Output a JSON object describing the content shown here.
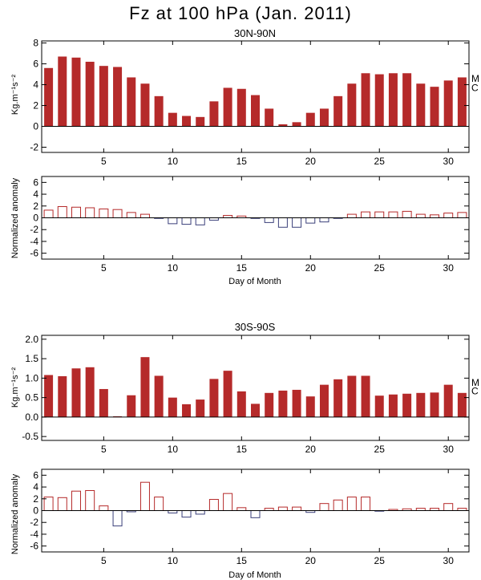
{
  "figure": {
    "title": "Fz at 100 hPa (Jan. 2011)",
    "colors": {
      "positive": "#b52a2a",
      "negative": "#3a3f7a",
      "axis": "#000000"
    }
  },
  "chart_data": [
    {
      "type": "bar",
      "title": "30N-90N",
      "xlabel": "",
      "ylabel": "Kg.m⁻¹s⁻²",
      "x": [
        1,
        2,
        3,
        4,
        5,
        6,
        7,
        8,
        9,
        10,
        11,
        12,
        13,
        14,
        15,
        16,
        17,
        18,
        19,
        20,
        21,
        22,
        23,
        24,
        25,
        26,
        27,
        28,
        29,
        30,
        31
      ],
      "values": [
        5.6,
        6.7,
        6.6,
        6.2,
        5.8,
        5.7,
        4.7,
        4.1,
        2.9,
        1.3,
        1.0,
        0.9,
        2.4,
        3.7,
        3.6,
        3.0,
        1.7,
        0.2,
        0.4,
        1.3,
        1.7,
        2.9,
        4.1,
        5.1,
        5.0,
        5.1,
        5.1,
        4.1,
        3.8,
        4.4,
        4.7
      ],
      "xlim": [
        0.5,
        31.5
      ],
      "ylim": [
        -2.5,
        8.2
      ],
      "xticks": [
        5,
        10,
        15,
        20,
        25,
        30
      ],
      "yticks": [
        -2,
        0,
        2,
        4,
        6,
        8
      ],
      "style": "filled",
      "side_labels": [
        {
          "text": "M",
          "y": 4.6
        },
        {
          "text": "C",
          "y": 3.7
        }
      ]
    },
    {
      "type": "bar",
      "title": "",
      "xlabel": "Day of Month",
      "ylabel": "Normalized anomaly",
      "x": [
        1,
        2,
        3,
        4,
        5,
        6,
        7,
        8,
        9,
        10,
        11,
        12,
        13,
        14,
        15,
        16,
        17,
        18,
        19,
        20,
        21,
        22,
        23,
        24,
        25,
        26,
        27,
        28,
        29,
        30,
        31
      ],
      "values": [
        1.3,
        1.9,
        1.8,
        1.7,
        1.5,
        1.4,
        0.9,
        0.6,
        -0.1,
        -1.0,
        -1.1,
        -1.2,
        -0.4,
        0.4,
        0.3,
        -0.1,
        -0.8,
        -1.6,
        -1.6,
        -0.9,
        -0.7,
        -0.1,
        0.6,
        1.0,
        1.0,
        1.0,
        1.1,
        0.6,
        0.5,
        0.8,
        0.9
      ],
      "xlim": [
        0.5,
        31.5
      ],
      "ylim": [
        -7,
        7
      ],
      "xticks": [
        5,
        10,
        15,
        20,
        25,
        30
      ],
      "yticks": [
        -6,
        -4,
        -2,
        0,
        2,
        4,
        6
      ],
      "style": "outline"
    },
    {
      "type": "bar",
      "title": "30S-90S",
      "xlabel": "",
      "ylabel": "Kg.m⁻¹s⁻²",
      "x": [
        1,
        2,
        3,
        4,
        5,
        6,
        7,
        8,
        9,
        10,
        11,
        12,
        13,
        14,
        15,
        16,
        17,
        18,
        19,
        20,
        21,
        22,
        23,
        24,
        25,
        26,
        27,
        28,
        29,
        30,
        31
      ],
      "values": [
        1.08,
        1.05,
        1.25,
        1.28,
        0.72,
        0.02,
        0.56,
        1.54,
        1.06,
        0.5,
        0.33,
        0.45,
        0.98,
        1.19,
        0.66,
        0.34,
        0.62,
        0.68,
        0.7,
        0.53,
        0.83,
        0.97,
        1.06,
        1.06,
        0.55,
        0.58,
        0.6,
        0.62,
        0.63,
        0.83,
        0.62
      ],
      "xlim": [
        0.5,
        31.5
      ],
      "ylim": [
        -0.6,
        2.1
      ],
      "xticks": [
        5,
        10,
        15,
        20,
        25,
        30
      ],
      "yticks": [
        -0.5,
        0.0,
        0.5,
        1.0,
        1.5,
        2.0
      ],
      "ytick_labels": [
        "-0.5",
        "0.0",
        "0.5",
        "1.0",
        "1.5",
        "2.0"
      ],
      "style": "filled",
      "side_labels": [
        {
          "text": "M",
          "y": 0.88
        },
        {
          "text": "C",
          "y": 0.67
        }
      ]
    },
    {
      "type": "bar",
      "title": "",
      "xlabel": "Day of Month",
      "ylabel": "Normalized anomaly",
      "x": [
        1,
        2,
        3,
        4,
        5,
        6,
        7,
        8,
        9,
        10,
        11,
        12,
        13,
        14,
        15,
        16,
        17,
        18,
        19,
        20,
        21,
        22,
        23,
        24,
        25,
        26,
        27,
        28,
        29,
        30,
        31
      ],
      "values": [
        2.3,
        2.2,
        3.3,
        3.4,
        0.8,
        -2.6,
        -0.2,
        4.8,
        2.3,
        -0.4,
        -1.1,
        -0.6,
        1.9,
        2.9,
        0.5,
        -1.2,
        0.4,
        0.6,
        0.6,
        -0.3,
        1.2,
        1.8,
        2.3,
        2.3,
        -0.1,
        0.2,
        0.3,
        0.4,
        0.4,
        1.2,
        0.4
      ],
      "xlim": [
        0.5,
        31.5
      ],
      "ylim": [
        -7,
        7
      ],
      "xticks": [
        5,
        10,
        15,
        20,
        25,
        30
      ],
      "yticks": [
        -6,
        -4,
        -2,
        0,
        2,
        4,
        6
      ],
      "style": "outline"
    }
  ]
}
